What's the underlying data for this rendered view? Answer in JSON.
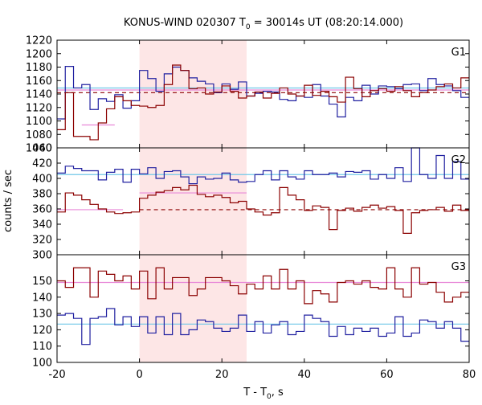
{
  "chart_data": {
    "type": "line",
    "title_prefix": "KONUS-WIND 020307 T",
    "title_sub": "0",
    "title_suffix": " = 30014s UT (08:20:14.000)",
    "xlabel_prefix": "T - T",
    "xlabel_sub": "0",
    "xlabel_suffix": ", s",
    "ylabel": "counts / sec",
    "xlim": [
      -20,
      80
    ],
    "xticks": [
      -20,
      0,
      20,
      40,
      60,
      80
    ],
    "highlight_interval": [
      0,
      26
    ],
    "colors": {
      "red_series": "#8b0000",
      "blue_series": "#2020a0",
      "cyan_fit": "#70c8e8",
      "pink_fit": "#e888d8",
      "highlight_fill": "#fde6e6",
      "axis": "#000000"
    },
    "panels": [
      {
        "label": "G1",
        "ylim": [
          1060,
          1220
        ],
        "yticks": [
          1060,
          1080,
          1100,
          1120,
          1140,
          1160,
          1180,
          1200,
          1220
        ],
        "x_edges": [
          -20,
          -18,
          -16,
          -14,
          -12,
          -10,
          -8,
          -6,
          -4,
          -2,
          0,
          2,
          4,
          6,
          8,
          10,
          12,
          14,
          16,
          18,
          20,
          22,
          24,
          26,
          28,
          30,
          32,
          34,
          36,
          38,
          40,
          42,
          44,
          46,
          48,
          50,
          52,
          54,
          56,
          58,
          60,
          62,
          64,
          66,
          68,
          70,
          72,
          74,
          76,
          78,
          80
        ],
        "red_values": [
          1087,
          1142,
          1077,
          1077,
          1072,
          1097,
          1118,
          1136,
          1130,
          1123,
          1122,
          1120,
          1123,
          1154,
          1183,
          1175,
          1148,
          1149,
          1140,
          1143,
          1152,
          1144,
          1134,
          1137,
          1143,
          1134,
          1141,
          1149,
          1140,
          1137,
          1153,
          1138,
          1144,
          1136,
          1128,
          1165,
          1148,
          1136,
          1145,
          1148,
          1144,
          1151,
          1145,
          1136,
          1142,
          1146,
          1151,
          1155,
          1149,
          1164
        ],
        "blue_values": [
          1103,
          1181,
          1149,
          1154,
          1117,
          1133,
          1129,
          1139,
          1119,
          1130,
          1175,
          1163,
          1144,
          1170,
          1180,
          1175,
          1164,
          1159,
          1155,
          1142,
          1155,
          1147,
          1158,
          1137,
          1141,
          1144,
          1143,
          1132,
          1130,
          1137,
          1135,
          1154,
          1137,
          1125,
          1106,
          1135,
          1130,
          1153,
          1140,
          1152,
          1151,
          1148,
          1154,
          1155,
          1145,
          1163,
          1154,
          1152,
          1145,
          1135
        ],
        "fits": [
          {
            "color": "cyan",
            "style": "solid",
            "x": [
              -20,
              80
            ],
            "y": [
              1149,
              1149
            ]
          },
          {
            "color": "pink",
            "style": "solid",
            "x": [
              -20,
              80
            ],
            "y": [
              1146,
              1146
            ]
          },
          {
            "color": "pink",
            "style": "solid",
            "x": [
              -14,
              -6
            ],
            "y": [
              1094,
              1094
            ]
          },
          {
            "color": "red",
            "style": "dashed",
            "x": [
              -20,
              80
            ],
            "y": [
              1142,
              1142
            ]
          }
        ]
      },
      {
        "label": "G2",
        "ylim": [
          300,
          440
        ],
        "yticks": [
          300,
          320,
          340,
          360,
          380,
          400,
          420,
          440
        ],
        "x_edges": [
          -20,
          -18,
          -16,
          -14,
          -12,
          -10,
          -8,
          -6,
          -4,
          -2,
          0,
          2,
          4,
          6,
          8,
          10,
          12,
          14,
          16,
          18,
          20,
          22,
          24,
          26,
          28,
          30,
          32,
          34,
          36,
          38,
          40,
          42,
          44,
          46,
          48,
          50,
          52,
          54,
          56,
          58,
          60,
          62,
          64,
          66,
          68,
          70,
          72,
          74,
          76,
          78,
          80
        ],
        "red_values": [
          356,
          381,
          378,
          372,
          366,
          360,
          356,
          354,
          355,
          356,
          374,
          378,
          382,
          384,
          388,
          385,
          391,
          379,
          376,
          378,
          375,
          368,
          370,
          360,
          356,
          352,
          355,
          388,
          378,
          372,
          358,
          364,
          362,
          333,
          358,
          361,
          357,
          362,
          365,
          361,
          363,
          358,
          328,
          355,
          358,
          359,
          362,
          357,
          365,
          358
        ],
        "blue_values": [
          407,
          416,
          413,
          410,
          410,
          398,
          408,
          412,
          395,
          412,
          406,
          414,
          400,
          409,
          410,
          402,
          393,
          402,
          399,
          400,
          407,
          398,
          395,
          396,
          405,
          410,
          398,
          410,
          402,
          399,
          410,
          405,
          405,
          407,
          402,
          409,
          408,
          410,
          399,
          405,
          400,
          414,
          396,
          440,
          405,
          400,
          430,
          400,
          422,
          399
        ],
        "fits": [
          {
            "color": "cyan",
            "style": "solid",
            "x": [
              -20,
              80
            ],
            "y": [
              405,
              405
            ]
          },
          {
            "color": "pink",
            "style": "solid",
            "x": [
              -20,
              -4
            ],
            "y": [
              359,
              359
            ]
          },
          {
            "color": "pink",
            "style": "solid",
            "x": [
              0,
              26
            ],
            "y": [
              381,
              381
            ]
          },
          {
            "color": "red",
            "style": "dashed",
            "x": [
              0,
              80
            ],
            "y": [
              359,
              359
            ]
          }
        ]
      },
      {
        "label": "G3",
        "ylim": [
          100,
          166
        ],
        "yticks": [
          100,
          110,
          120,
          130,
          140,
          150
        ],
        "x_edges": [
          -20,
          -18,
          -16,
          -14,
          -12,
          -10,
          -8,
          -6,
          -4,
          -2,
          0,
          2,
          4,
          6,
          8,
          10,
          12,
          14,
          16,
          18,
          20,
          22,
          24,
          26,
          28,
          30,
          32,
          34,
          36,
          38,
          40,
          42,
          44,
          46,
          48,
          50,
          52,
          54,
          56,
          58,
          60,
          62,
          64,
          66,
          68,
          70,
          72,
          74,
          76,
          78,
          80
        ],
        "red_values": [
          150,
          146,
          158,
          158,
          140,
          156,
          154,
          150,
          153,
          145,
          156,
          139,
          158,
          145,
          152,
          152,
          141,
          145,
          152,
          152,
          150,
          147,
          142,
          148,
          145,
          153,
          145,
          157,
          145,
          150,
          136,
          144,
          142,
          137,
          149,
          150,
          148,
          150,
          146,
          145,
          158,
          145,
          140,
          158,
          148,
          149,
          143,
          137,
          140,
          143
        ],
        "blue_values": [
          129,
          130,
          127,
          111,
          127,
          128,
          133,
          123,
          128,
          122,
          128,
          118,
          128,
          117,
          130,
          117,
          120,
          126,
          125,
          121,
          119,
          121,
          129,
          119,
          125,
          118,
          123,
          125,
          117,
          119,
          129,
          127,
          125,
          116,
          122,
          117,
          121,
          119,
          121,
          116,
          118,
          128,
          116,
          118,
          126,
          125,
          121,
          125,
          121,
          113
        ],
        "fits": [
          {
            "color": "pink",
            "style": "solid",
            "x": [
              -20,
              80
            ],
            "y": [
              149,
              149
            ]
          },
          {
            "color": "cyan",
            "style": "solid",
            "x": [
              -20,
              80
            ],
            "y": [
              123.5,
              123.5
            ]
          }
        ]
      }
    ]
  }
}
